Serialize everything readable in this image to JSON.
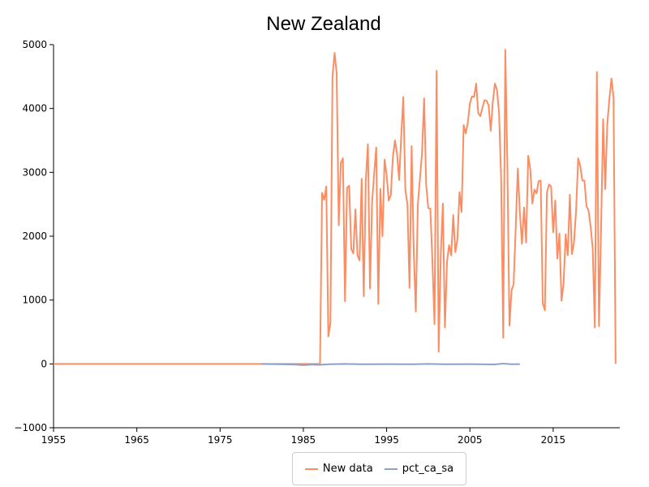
{
  "chart_data": {
    "type": "line",
    "title": "New Zealand",
    "xlabel": "",
    "ylabel": "",
    "xlim": [
      1955,
      2023
    ],
    "ylim": [
      -1000,
      5000
    ],
    "x_ticks": [
      1955,
      1965,
      1975,
      1985,
      1995,
      2005,
      2015
    ],
    "x_tick_labels": [
      "1955",
      "1965",
      "1975",
      "1985",
      "1995",
      "2005",
      "2015"
    ],
    "y_ticks": [
      -1000,
      0,
      1000,
      2000,
      3000,
      4000,
      5000
    ],
    "y_tick_labels": [
      "−1000",
      "0",
      "1000",
      "2000",
      "3000",
      "4000",
      "5000"
    ],
    "grid": false,
    "legend_position": "bottom-center",
    "series": [
      {
        "name": "New data",
        "color": "#fc8d62",
        "points": [
          [
            1955,
            0
          ],
          [
            1987.0,
            0
          ],
          [
            1987.25,
            2680
          ],
          [
            1987.5,
            2570
          ],
          [
            1987.75,
            2780
          ],
          [
            1988.0,
            430
          ],
          [
            1988.25,
            650
          ],
          [
            1988.5,
            4500
          ],
          [
            1988.75,
            4870
          ],
          [
            1989.0,
            4550
          ],
          [
            1989.25,
            2170
          ],
          [
            1989.5,
            3150
          ],
          [
            1989.75,
            3220
          ],
          [
            1990.0,
            980
          ],
          [
            1990.25,
            2760
          ],
          [
            1990.5,
            2790
          ],
          [
            1990.75,
            1800
          ],
          [
            1991.0,
            1730
          ],
          [
            1991.25,
            2420
          ],
          [
            1991.5,
            1700
          ],
          [
            1991.75,
            1620
          ],
          [
            1992.0,
            2900
          ],
          [
            1992.25,
            1060
          ],
          [
            1992.5,
            2880
          ],
          [
            1992.75,
            3440
          ],
          [
            1993.0,
            1180
          ],
          [
            1993.25,
            2520
          ],
          [
            1993.5,
            2980
          ],
          [
            1993.75,
            3390
          ],
          [
            1994.0,
            940
          ],
          [
            1994.25,
            2740
          ],
          [
            1994.5,
            2000
          ],
          [
            1994.75,
            3200
          ],
          [
            1995.0,
            2960
          ],
          [
            1995.25,
            2560
          ],
          [
            1995.5,
            2640
          ],
          [
            1995.75,
            3240
          ],
          [
            1996.0,
            3500
          ],
          [
            1996.25,
            3290
          ],
          [
            1996.5,
            2880
          ],
          [
            1996.75,
            3560
          ],
          [
            1997.0,
            4180
          ],
          [
            1997.25,
            2720
          ],
          [
            1997.5,
            2500
          ],
          [
            1997.75,
            1190
          ],
          [
            1998.0,
            3410
          ],
          [
            1998.25,
            1800
          ],
          [
            1998.5,
            820
          ],
          [
            1998.75,
            2500
          ],
          [
            1999.0,
            2900
          ],
          [
            1999.25,
            3300
          ],
          [
            1999.5,
            4160
          ],
          [
            1999.75,
            2800
          ],
          [
            2000.0,
            2440
          ],
          [
            2000.25,
            2430
          ],
          [
            2000.5,
            1600
          ],
          [
            2000.75,
            620
          ],
          [
            2001.0,
            4590
          ],
          [
            2001.25,
            190
          ],
          [
            2001.5,
            1700
          ],
          [
            2001.75,
            2510
          ],
          [
            2002.0,
            570
          ],
          [
            2002.25,
            1600
          ],
          [
            2002.5,
            1860
          ],
          [
            2002.75,
            1700
          ],
          [
            2003.0,
            2330
          ],
          [
            2003.25,
            1750
          ],
          [
            2003.5,
            1950
          ],
          [
            2003.75,
            2690
          ],
          [
            2004.0,
            2380
          ],
          [
            2004.25,
            3740
          ],
          [
            2004.5,
            3610
          ],
          [
            2004.75,
            3780
          ],
          [
            2005.0,
            4080
          ],
          [
            2005.25,
            4190
          ],
          [
            2005.5,
            4180
          ],
          [
            2005.75,
            4390
          ],
          [
            2006.0,
            3930
          ],
          [
            2006.25,
            3880
          ],
          [
            2006.5,
            4010
          ],
          [
            2006.75,
            4130
          ],
          [
            2007.0,
            4120
          ],
          [
            2007.25,
            4050
          ],
          [
            2007.5,
            3650
          ],
          [
            2007.75,
            4100
          ],
          [
            2008.0,
            4390
          ],
          [
            2008.25,
            4290
          ],
          [
            2008.5,
            3930
          ],
          [
            2008.75,
            2900
          ],
          [
            2009.0,
            410
          ],
          [
            2009.25,
            4920
          ],
          [
            2009.5,
            3100
          ],
          [
            2009.75,
            600
          ],
          [
            2010.0,
            1150
          ],
          [
            2010.25,
            1250
          ],
          [
            2010.5,
            2130
          ],
          [
            2010.75,
            3060
          ],
          [
            2011.0,
            2370
          ],
          [
            2011.25,
            1880
          ],
          [
            2011.5,
            2450
          ],
          [
            2011.75,
            1900
          ],
          [
            2012.0,
            3260
          ],
          [
            2012.25,
            3050
          ],
          [
            2012.5,
            2510
          ],
          [
            2012.75,
            2730
          ],
          [
            2013.0,
            2670
          ],
          [
            2013.25,
            2860
          ],
          [
            2013.5,
            2870
          ],
          [
            2013.75,
            950
          ],
          [
            2014.0,
            840
          ],
          [
            2014.25,
            2680
          ],
          [
            2014.5,
            2810
          ],
          [
            2014.75,
            2780
          ],
          [
            2015.0,
            2060
          ],
          [
            2015.25,
            2560
          ],
          [
            2015.5,
            1650
          ],
          [
            2015.75,
            2040
          ],
          [
            2016.0,
            990
          ],
          [
            2016.25,
            1260
          ],
          [
            2016.5,
            2030
          ],
          [
            2016.75,
            1700
          ],
          [
            2017.0,
            2650
          ],
          [
            2017.25,
            1720
          ],
          [
            2017.5,
            1900
          ],
          [
            2017.75,
            2400
          ],
          [
            2018.0,
            3220
          ],
          [
            2018.25,
            3100
          ],
          [
            2018.5,
            2870
          ],
          [
            2018.75,
            2870
          ],
          [
            2019.0,
            2470
          ],
          [
            2019.25,
            2400
          ],
          [
            2019.5,
            2150
          ],
          [
            2019.75,
            1800
          ],
          [
            2020.0,
            570
          ],
          [
            2020.25,
            4570
          ],
          [
            2020.5,
            590
          ],
          [
            2020.75,
            2100
          ],
          [
            2021.0,
            3830
          ],
          [
            2021.25,
            2740
          ],
          [
            2021.5,
            3760
          ],
          [
            2021.75,
            4150
          ],
          [
            2022.0,
            4470
          ],
          [
            2022.25,
            4170
          ],
          [
            2022.5,
            0
          ]
        ]
      },
      {
        "name": "pct_ca_sa",
        "color": "#8da0cb",
        "points": [
          [
            1980,
            0
          ],
          [
            1982,
            -5
          ],
          [
            1984,
            -10
          ],
          [
            1985,
            -20
          ],
          [
            1986,
            -10
          ],
          [
            1987,
            -15
          ],
          [
            1988,
            -5
          ],
          [
            1990,
            0
          ],
          [
            1992,
            -5
          ],
          [
            1995,
            -3
          ],
          [
            1998,
            -5
          ],
          [
            2000,
            0
          ],
          [
            2002,
            -5
          ],
          [
            2005,
            -3
          ],
          [
            2008,
            -8
          ],
          [
            2009,
            5
          ],
          [
            2010,
            -5
          ],
          [
            2011,
            -3
          ]
        ]
      }
    ]
  }
}
